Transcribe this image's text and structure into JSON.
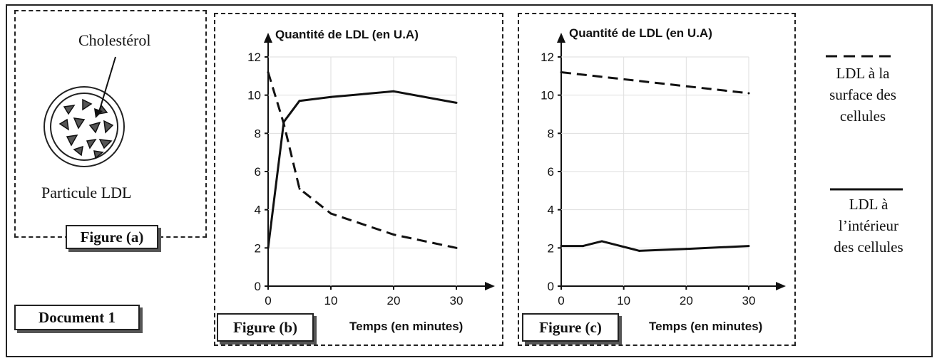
{
  "document_label": "Document 1",
  "figure_a": {
    "label": "Figure (a)",
    "cholesterol_label": "Cholestérol",
    "particle_label": "Particule LDL"
  },
  "legend": {
    "dashed_label": [
      "LDL à la",
      "surface des",
      "cellules"
    ],
    "solid_label": [
      "LDL à",
      "l’intérieur",
      "des cellules"
    ]
  },
  "chart_data": [
    {
      "type": "line",
      "figure_label": "Figure (b)",
      "title": "Quantité de LDL (en U.A)",
      "xlabel": "Temps (en minutes)",
      "ylabel": "Quantité de LDL (en U.A)",
      "xlim": [
        0,
        30
      ],
      "ylim": [
        0,
        12
      ],
      "x_ticks": [
        0,
        10,
        20,
        30
      ],
      "y_ticks": [
        0,
        2,
        4,
        6,
        8,
        10,
        12
      ],
      "series": [
        {
          "name": "LDL à la surface des cellules",
          "style": "dashed",
          "x": [
            0,
            2.5,
            5,
            10,
            20,
            30
          ],
          "y": [
            11.2,
            8.5,
            5.1,
            3.8,
            2.7,
            2.0
          ]
        },
        {
          "name": "LDL à l’intérieur des cellules",
          "style": "solid",
          "x": [
            0,
            2.5,
            5,
            10,
            20,
            30
          ],
          "y": [
            2.0,
            8.6,
            9.7,
            9.9,
            10.2,
            9.6
          ]
        }
      ]
    },
    {
      "type": "line",
      "figure_label": "Figure (c)",
      "title": "Quantité de LDL (en U.A)",
      "xlabel": "Temps (en minutes)",
      "ylabel": "Quantité de LDL (en U.A)",
      "xlim": [
        0,
        30
      ],
      "ylim": [
        0,
        12
      ],
      "x_ticks": [
        0,
        10,
        20,
        30
      ],
      "y_ticks": [
        0,
        2,
        4,
        6,
        8,
        10,
        12
      ],
      "series": [
        {
          "name": "LDL à la surface des cellules",
          "style": "dashed",
          "x": [
            0,
            30
          ],
          "y": [
            11.2,
            10.1
          ]
        },
        {
          "name": "LDL à l’intérieur des cellules",
          "style": "solid",
          "x": [
            0,
            3.5,
            6.5,
            12.5,
            20,
            30
          ],
          "y": [
            2.1,
            2.1,
            2.35,
            1.85,
            1.95,
            2.1
          ]
        }
      ]
    }
  ]
}
